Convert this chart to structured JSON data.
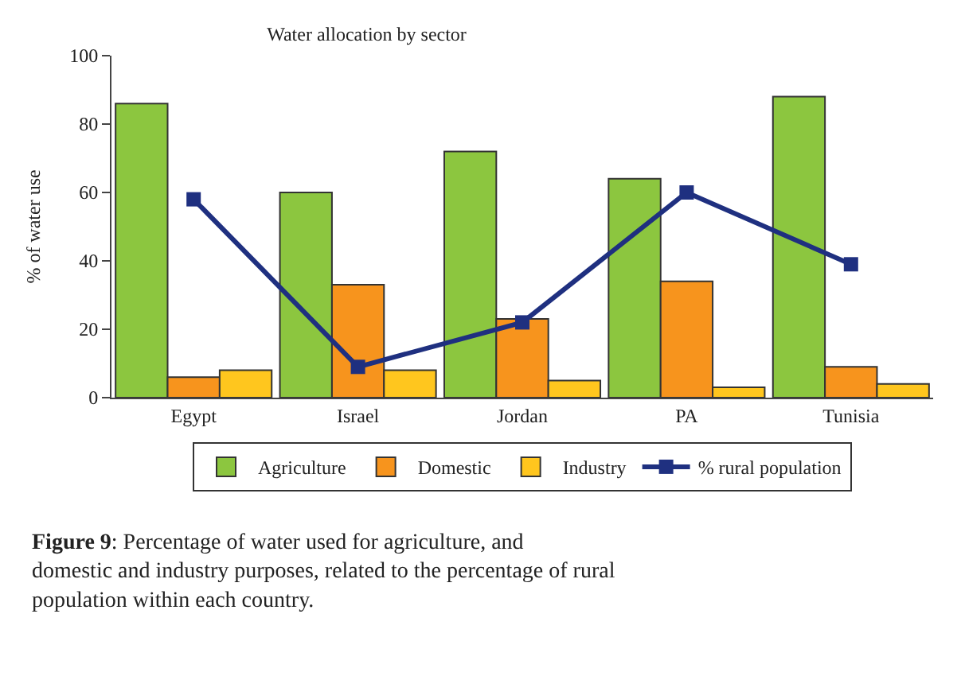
{
  "chart_data": {
    "type": "bar",
    "title": "Water allocation by sector",
    "ylabel": "% of water use",
    "categories": [
      "Egypt",
      "Israel",
      "Jordan",
      "PA",
      "Tunisia"
    ],
    "series": [
      {
        "name": "Agriculture",
        "color": "#8cc63f",
        "values": [
          86,
          60,
          72,
          64,
          88
        ]
      },
      {
        "name": "Domestic",
        "color": "#f7941d",
        "values": [
          6,
          33,
          23,
          34,
          9
        ]
      },
      {
        "name": "Industry",
        "color": "#ffc61e",
        "values": [
          8,
          8,
          5,
          3,
          4
        ]
      },
      {
        "name": "% rural population",
        "type": "line",
        "color": "#1f3080",
        "marker": "square",
        "values": [
          58,
          9,
          22,
          60,
          39
        ]
      }
    ],
    "ylim": [
      0,
      100
    ],
    "yticks": [
      0,
      20,
      40,
      60,
      80,
      100
    ],
    "grid": false,
    "legend": "bottom",
    "annotations": [
      "Figure 9: Percentage of water used for agriculture, and domestic and industry purposes, related to the percentage of rural population within each country."
    ]
  }
}
